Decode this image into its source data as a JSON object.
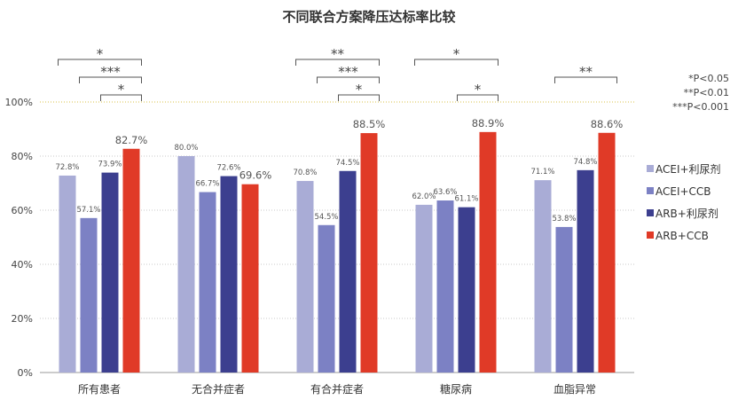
{
  "chart_data": {
    "type": "bar",
    "title": "不同联合方案降压达标率比较",
    "categories": [
      "所有患者",
      "无合并症者",
      "有合并症者",
      "糖尿病",
      "血脂异常"
    ],
    "series": [
      {
        "name": "ACEI+利尿剂",
        "color": "#a9acd6",
        "values": [
          72.8,
          80.0,
          70.8,
          62.0,
          71.1
        ]
      },
      {
        "name": "ACEI+CCB",
        "color": "#7c81c4",
        "values": [
          57.1,
          66.7,
          54.5,
          63.6,
          53.8
        ]
      },
      {
        "name": "ARB+利尿剂",
        "color": "#3c3f8f",
        "values": [
          73.9,
          72.6,
          74.5,
          61.1,
          74.8
        ]
      },
      {
        "name": "ARB+CCB",
        "color": "#e03a27",
        "values": [
          82.7,
          69.6,
          88.5,
          88.9,
          88.6
        ]
      }
    ],
    "ylim": [
      0,
      100
    ],
    "yticks": [
      "0%",
      "20%",
      "40%",
      "60%",
      "80%",
      "100%"
    ],
    "legend_position": "right",
    "grid": true,
    "significance": [
      {
        "category": 0,
        "from_series": 0,
        "to_series": 3,
        "mark": "*"
      },
      {
        "category": 0,
        "from_series": 1,
        "to_series": 3,
        "mark": "***"
      },
      {
        "category": 0,
        "from_series": 2,
        "to_series": 3,
        "mark": "*"
      },
      {
        "category": 2,
        "from_series": 0,
        "to_series": 3,
        "mark": "**"
      },
      {
        "category": 2,
        "from_series": 1,
        "to_series": 3,
        "mark": "***"
      },
      {
        "category": 2,
        "from_series": 2,
        "to_series": 3,
        "mark": "*"
      },
      {
        "category": 3,
        "from_series": 0,
        "to_series": 3,
        "mark": "*"
      },
      {
        "category": 3,
        "from_series": 2,
        "to_series": 3,
        "mark": "*"
      },
      {
        "category": 4,
        "from_series": 1,
        "to_series": 3,
        "mark": "**"
      }
    ],
    "pvalue_notes": [
      "*P<0.05",
      "**P<0.01",
      "***P<0.001"
    ]
  }
}
